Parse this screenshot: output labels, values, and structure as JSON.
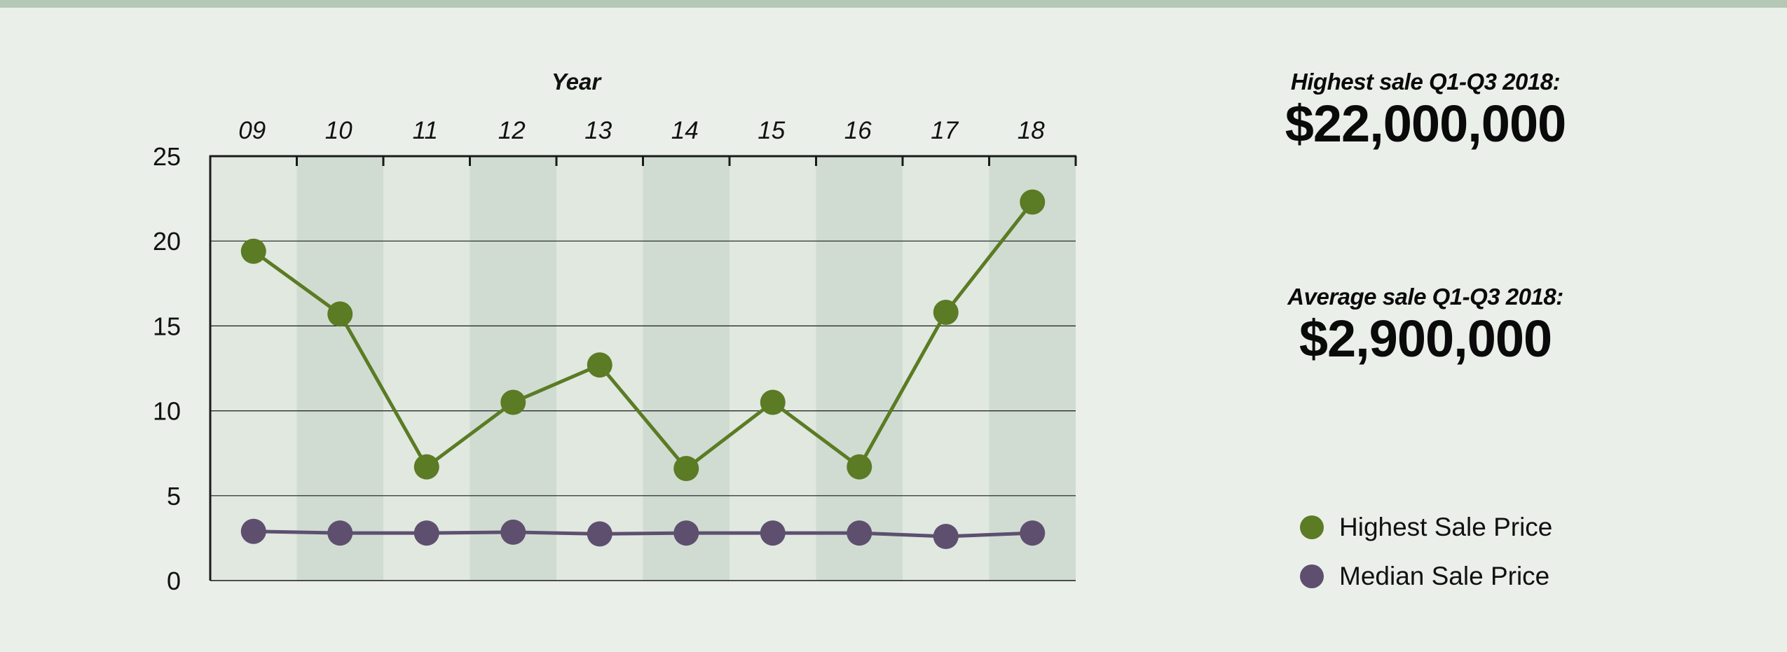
{
  "colors": {
    "background": "#eaefea",
    "top_strip": "#b5c8b6",
    "band_light": "#e0e8e0",
    "band_dark": "#d0dcd1",
    "highest": "#5b7b24",
    "median": "#5e4f6f",
    "grid": "#1a1a1a"
  },
  "chart_data": {
    "type": "line",
    "xlabel": "Year",
    "ylabel": "",
    "categories": [
      "09",
      "10",
      "11",
      "12",
      "13",
      "14",
      "15",
      "16",
      "17",
      "18"
    ],
    "ylim": [
      0,
      25
    ],
    "yticks": [
      "0",
      "5",
      "10",
      "15",
      "20",
      "25"
    ],
    "grid": true,
    "legend_position": "right",
    "series": [
      {
        "name": "Highest Sale Price",
        "color": "#5b7b24",
        "values": [
          19.4,
          15.7,
          6.7,
          10.5,
          12.7,
          6.6,
          10.5,
          6.7,
          15.8,
          22.3
        ]
      },
      {
        "name": "Median Sale Price",
        "color": "#5e4f6f",
        "values": [
          2.9,
          2.8,
          2.8,
          2.85,
          2.75,
          2.8,
          2.8,
          2.8,
          2.6,
          2.8
        ]
      }
    ]
  },
  "stats": {
    "highest_label": "Highest sale Q1-Q3 2018:",
    "highest_value": "$22,000,000",
    "average_label": "Average sale Q1-Q3 2018:",
    "average_value": "$2,900,000"
  },
  "legend": [
    {
      "label": "Highest Sale Price",
      "color": "#5b7b24"
    },
    {
      "label": "Median Sale Price",
      "color": "#5e4f6f"
    }
  ]
}
